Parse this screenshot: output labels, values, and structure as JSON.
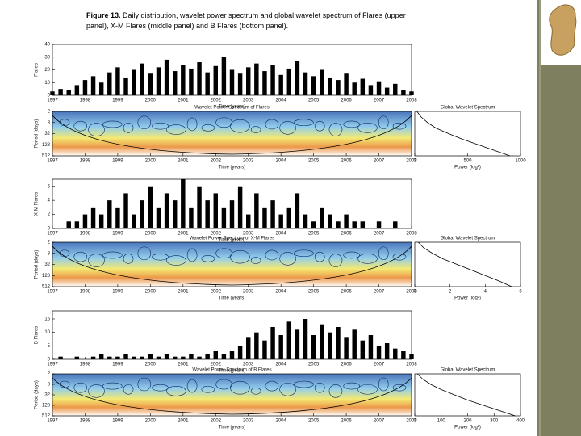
{
  "caption": {
    "label": "Figure 13.",
    "text": "Daily distribution, wavelet power spectrum and global wavelet spectrum of Flares (upper panel), X-M Flares (middle panel) and B Flares (bottom panel)."
  },
  "chart_data": [
    {
      "type": "bar",
      "ylabel": "Flares",
      "xlabel": "Time (years)",
      "color": "#000000",
      "x": [
        1997,
        1997.25,
        1997.5,
        1997.75,
        1998,
        1998.25,
        1998.5,
        1998.75,
        1999,
        1999.25,
        1999.5,
        1999.75,
        2000,
        2000.25,
        2000.5,
        2000.75,
        2001,
        2001.25,
        2001.5,
        2001.75,
        2002,
        2002.25,
        2002.5,
        2002.75,
        2003,
        2003.25,
        2003.5,
        2003.75,
        2004,
        2004.25,
        2004.5,
        2004.75,
        2005,
        2005.25,
        2005.5,
        2005.75,
        2006,
        2006.25,
        2006.5,
        2006.75,
        2007,
        2007.25,
        2007.5,
        2007.75,
        2008
      ],
      "values": [
        3,
        5,
        4,
        8,
        12,
        15,
        10,
        18,
        22,
        14,
        20,
        25,
        17,
        22,
        28,
        19,
        24,
        21,
        26,
        18,
        23,
        30,
        20,
        17,
        22,
        25,
        19,
        24,
        16,
        21,
        27,
        18,
        15,
        20,
        14,
        12,
        17,
        10,
        13,
        8,
        11,
        6,
        9,
        4,
        3
      ],
      "xlim": [
        1997,
        2008
      ],
      "xticks": [
        1997,
        1998,
        1999,
        2000,
        2001,
        2002,
        2003,
        2004,
        2005,
        2006,
        2007,
        2008
      ],
      "ylim": [
        0,
        40
      ],
      "yticks": [
        0,
        10,
        20,
        30,
        40
      ]
    },
    {
      "type": "wavelet",
      "title": "Wavelet Power Spectrum of Flares",
      "xlabel": "Time (years)",
      "ylabel": "Period (days)",
      "xlim": [
        1997,
        2008
      ],
      "xticks": [
        1997,
        1998,
        1999,
        2000,
        2001,
        2002,
        2003,
        2004,
        2005,
        2006,
        2007,
        2008
      ],
      "ylim": [
        2,
        512
      ],
      "yticks": [
        2,
        8,
        32,
        128,
        512
      ],
      "log_y": true
    },
    {
      "type": "line",
      "title": "Global Wavelet Spectrum",
      "xlabel": "Power (log²)",
      "color": "#000000",
      "x": [
        20,
        60,
        120,
        200,
        320,
        450,
        600,
        750,
        900
      ],
      "y": [
        2,
        4,
        8,
        16,
        32,
        64,
        128,
        256,
        512
      ],
      "xlim": [
        0,
        1000
      ],
      "xticks": [
        0,
        500,
        1000
      ],
      "ylim": [
        2,
        512
      ],
      "log_y": true
    },
    {
      "type": "bar",
      "ylabel": "X-M Flares",
      "xlabel": "Time (years)",
      "color": "#000000",
      "x": [
        1997,
        1997.25,
        1997.5,
        1997.75,
        1998,
        1998.25,
        1998.5,
        1998.75,
        1999,
        1999.25,
        1999.5,
        1999.75,
        2000,
        2000.25,
        2000.5,
        2000.75,
        2001,
        2001.25,
        2001.5,
        2001.75,
        2002,
        2002.25,
        2002.5,
        2002.75,
        2003,
        2003.25,
        2003.5,
        2003.75,
        2004,
        2004.25,
        2004.5,
        2004.75,
        2005,
        2005.25,
        2005.5,
        2005.75,
        2006,
        2006.25,
        2006.5,
        2006.75,
        2007,
        2007.25,
        2007.5,
        2007.75,
        2008
      ],
      "values": [
        0,
        0,
        1,
        1,
        2,
        3,
        2,
        4,
        3,
        5,
        2,
        4,
        6,
        3,
        5,
        4,
        7,
        3,
        6,
        4,
        5,
        3,
        4,
        6,
        2,
        5,
        3,
        4,
        2,
        3,
        5,
        2,
        1,
        3,
        2,
        1,
        2,
        1,
        1,
        0,
        1,
        0,
        1,
        0,
        0
      ],
      "xlim": [
        1997,
        2008
      ],
      "xticks": [
        1997,
        1998,
        1999,
        2000,
        2001,
        2002,
        2003,
        2004,
        2005,
        2006,
        2007,
        2008
      ],
      "ylim": [
        0,
        7
      ],
      "yticks": [
        0,
        2,
        4,
        6
      ]
    },
    {
      "type": "wavelet",
      "title": "Wavelet Power Spectrum of X-M Flares",
      "xlabel": "Time (years)",
      "ylabel": "Period (days)",
      "xlim": [
        1997,
        2008
      ],
      "xticks": [
        1997,
        1998,
        1999,
        2000,
        2001,
        2002,
        2003,
        2004,
        2005,
        2006,
        2007,
        2008
      ],
      "ylim": [
        2,
        512
      ],
      "yticks": [
        2,
        8,
        32,
        128,
        512
      ],
      "log_y": true
    },
    {
      "type": "line",
      "title": "Global Wavelet Spectrum",
      "xlabel": "Power (log²)",
      "color": "#000000",
      "x": [
        0.2,
        0.5,
        1,
        1.6,
        2.4,
        3.2,
        4,
        4.8,
        5.5
      ],
      "y": [
        2,
        4,
        8,
        16,
        32,
        64,
        128,
        256,
        512
      ],
      "xlim": [
        0,
        6
      ],
      "xticks": [
        0,
        2,
        4,
        6
      ],
      "ylim": [
        2,
        512
      ],
      "log_y": true
    },
    {
      "type": "bar",
      "ylabel": "B Flares",
      "xlabel": "Time (years)",
      "color": "#000000",
      "x": [
        1997,
        1997.25,
        1997.5,
        1997.75,
        1998,
        1998.25,
        1998.5,
        1998.75,
        1999,
        1999.25,
        1999.5,
        1999.75,
        2000,
        2000.25,
        2000.5,
        2000.75,
        2001,
        2001.25,
        2001.5,
        2001.75,
        2002,
        2002.25,
        2002.5,
        2002.75,
        2003,
        2003.25,
        2003.5,
        2003.75,
        2004,
        2004.25,
        2004.5,
        2004.75,
        2005,
        2005.25,
        2005.5,
        2005.75,
        2006,
        2006.25,
        2006.5,
        2006.75,
        2007,
        2007.25,
        2007.5,
        2007.75,
        2008
      ],
      "values": [
        0,
        1,
        0,
        1,
        0,
        1,
        2,
        1,
        1,
        2,
        1,
        1,
        2,
        1,
        2,
        1,
        1,
        2,
        1,
        2,
        3,
        2,
        3,
        5,
        8,
        10,
        7,
        12,
        9,
        14,
        11,
        15,
        9,
        13,
        10,
        12,
        8,
        11,
        7,
        9,
        5,
        6,
        4,
        3,
        2
      ],
      "xlim": [
        1997,
        2008
      ],
      "xticks": [
        1997,
        1998,
        1999,
        2000,
        2001,
        2002,
        2003,
        2004,
        2005,
        2006,
        2007,
        2008
      ],
      "ylim": [
        0,
        18
      ],
      "yticks": [
        0,
        5,
        10,
        15
      ]
    },
    {
      "type": "wavelet",
      "title": "Wavelet Power Spectrum of B Flares",
      "xlabel": "Time (years)",
      "ylabel": "Period (days)",
      "xlim": [
        1997,
        2008
      ],
      "xticks": [
        1997,
        1998,
        1999,
        2000,
        2001,
        2002,
        2003,
        2004,
        2005,
        2006,
        2007,
        2008
      ],
      "ylim": [
        2,
        512
      ],
      "yticks": [
        2,
        8,
        32,
        128,
        512
      ],
      "log_y": true
    },
    {
      "type": "line",
      "title": "Global Wavelet Spectrum",
      "xlabel": "Power (log²)",
      "color": "#000000",
      "x": [
        10,
        30,
        60,
        100,
        150,
        200,
        260,
        320,
        380
      ],
      "y": [
        2,
        4,
        8,
        16,
        32,
        64,
        128,
        256,
        512
      ],
      "xlim": [
        0,
        400
      ],
      "xticks": [
        0,
        100,
        200,
        300,
        400
      ],
      "ylim": [
        2,
        512
      ],
      "log_y": true
    }
  ]
}
